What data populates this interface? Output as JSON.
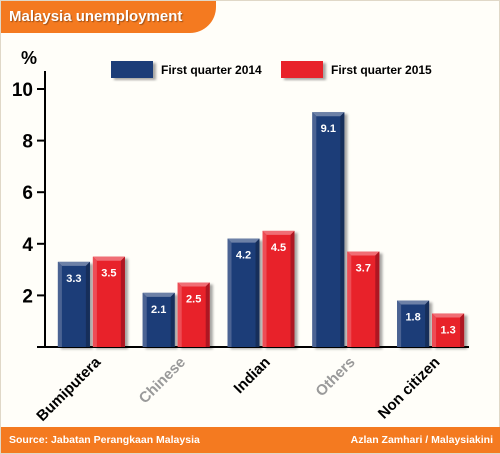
{
  "header": {
    "title": "Malaysia unemployment"
  },
  "footer": {
    "source": "Source: Jabatan Perangkaan Malaysia",
    "credit": "Azlan Zamhari / Malaysiakini"
  },
  "colors": {
    "series_2014": "#1f3d78",
    "series_2015": "#e8202a",
    "accent": "#f47a20",
    "label_dark": "#000000",
    "label_grey": "#9a9a9a"
  },
  "chart_data": {
    "type": "bar",
    "title": "Malaysia unemployment",
    "ylabel": "%",
    "xlabel": "",
    "ylim": [
      0,
      10
    ],
    "yticks": [
      2,
      4,
      6,
      8,
      10
    ],
    "grid": false,
    "legend": "top",
    "categories": [
      "Bumiputera",
      "Chinese",
      "Indian",
      "Others",
      "Non citizen"
    ],
    "category_label_colors": [
      "#000000",
      "#9a9a9a",
      "#000000",
      "#9a9a9a",
      "#000000"
    ],
    "series": [
      {
        "name": "First quarter 2014",
        "color": "#1f3d78",
        "values": [
          3.3,
          2.1,
          4.2,
          9.1,
          1.8
        ]
      },
      {
        "name": "First quarter 2015",
        "color": "#e8202a",
        "values": [
          3.5,
          2.5,
          4.5,
          3.7,
          1.3
        ]
      }
    ]
  }
}
